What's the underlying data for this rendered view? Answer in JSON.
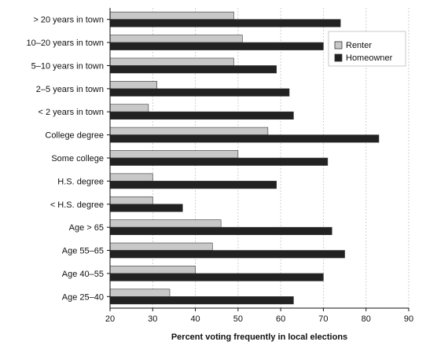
{
  "chart_data": {
    "type": "bar",
    "orientation": "horizontal",
    "categories": [
      "> 20 years in town",
      "10–20 years in town",
      "5–10 years in town",
      "2–5 years in town",
      "< 2 years in town",
      "College degree",
      "Some college",
      "H.S. degree",
      "< H.S. degree",
      "Age > 65",
      "Age 55–65",
      "Age 40–55",
      "Age 25–40"
    ],
    "series": [
      {
        "name": "Renter",
        "color": "#c8c8c8",
        "values": [
          49,
          51,
          49,
          31,
          29,
          57,
          50,
          30,
          30,
          46,
          44,
          40,
          34
        ]
      },
      {
        "name": "Homeowner",
        "color": "#222222",
        "values": [
          74,
          70,
          59,
          62,
          63,
          83,
          71,
          59,
          37,
          72,
          75,
          70,
          63
        ]
      }
    ],
    "xlabel": "Percent voting frequently in local elections",
    "xlim": [
      20,
      90
    ],
    "xticks": [
      20,
      30,
      40,
      50,
      60,
      70,
      80,
      90
    ],
    "grid": true,
    "legend_position": "top-right"
  }
}
